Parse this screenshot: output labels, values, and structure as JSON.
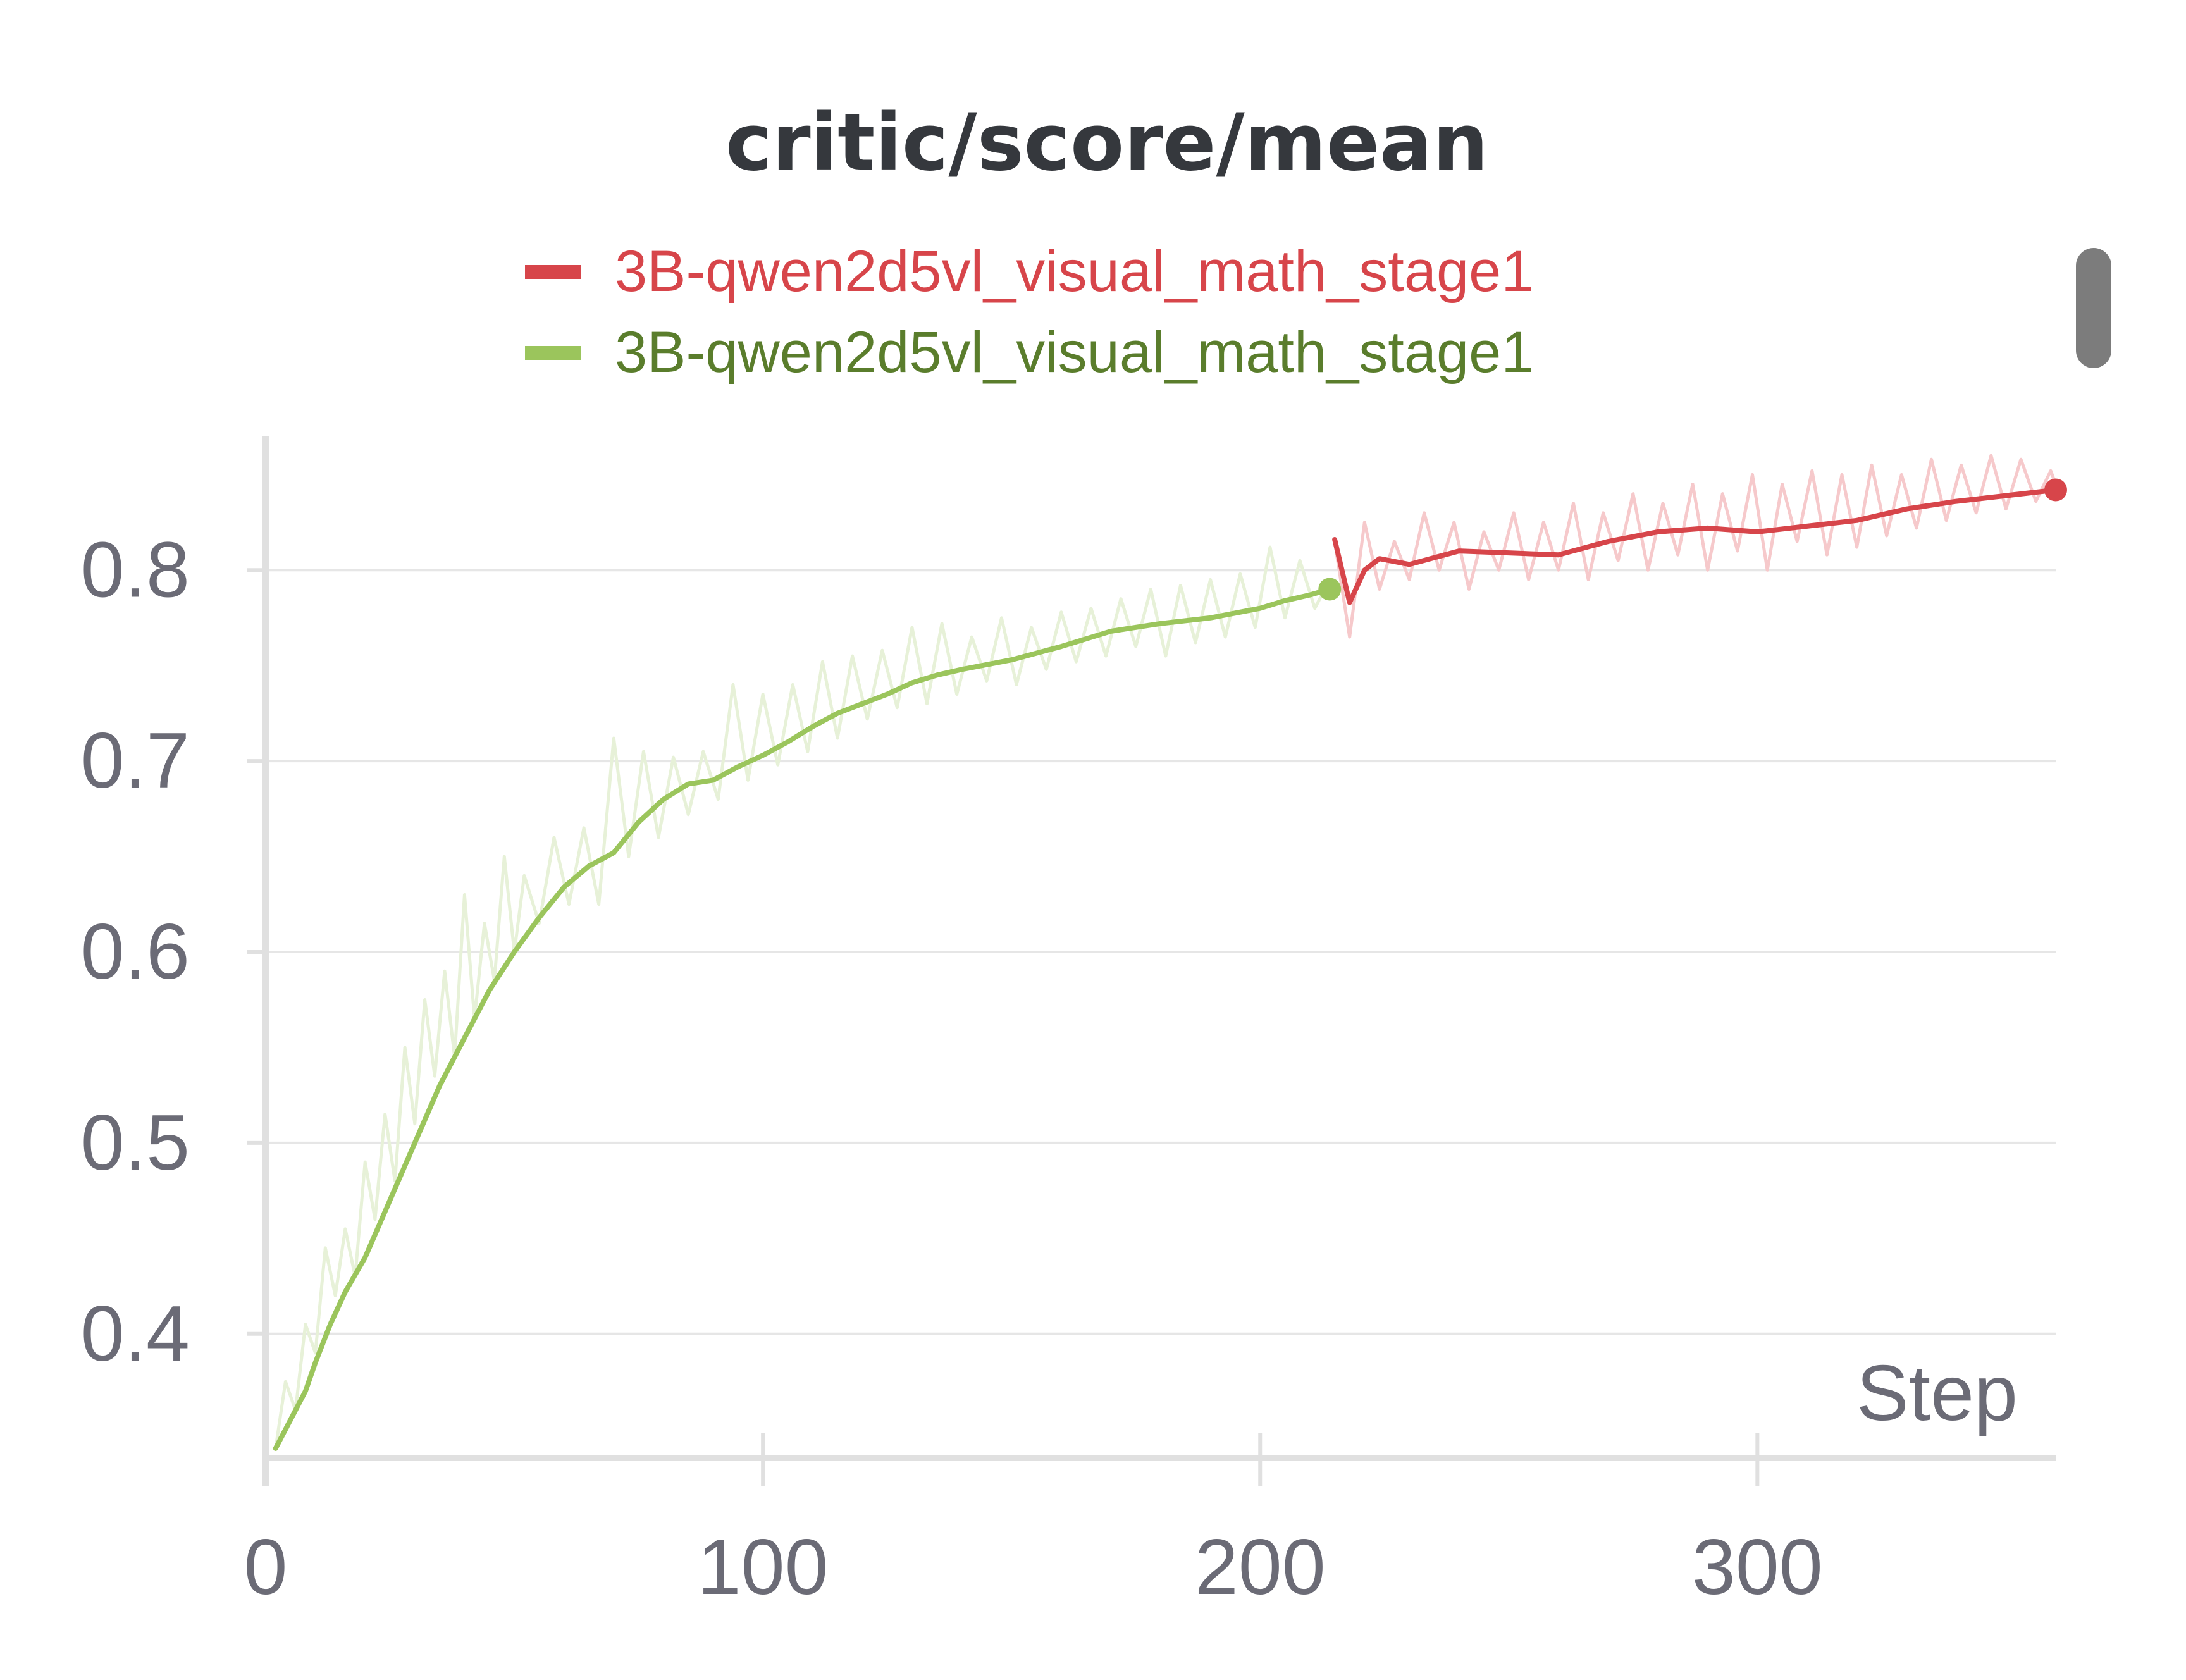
{
  "colors": {
    "background": "#ffffff",
    "title": "#35383d",
    "tick_text": "#6b6b76",
    "grid": "#e6e6e6",
    "axis": "#e0e0e0",
    "series_red": "#d7454a",
    "series_red_light": "#f6c9cb",
    "series_green": "#9bc55c",
    "series_green_light": "#e7f1d8",
    "legend_green_text": "#5a7d2c"
  },
  "chart_data": {
    "type": "line",
    "title": "critic/score/mean",
    "xlabel": "Step",
    "ylabel": "",
    "xlim": [
      0,
      360
    ],
    "ylim": [
      0.335,
      0.87
    ],
    "x_ticks": [
      0,
      100,
      200,
      300
    ],
    "x_tick_labels": [
      "0",
      "100",
      "200",
      "300"
    ],
    "y_ticks": [
      0.4,
      0.5,
      0.6,
      0.7,
      0.8
    ],
    "y_tick_labels": [
      "0.4",
      "0.5",
      "0.6",
      "0.7",
      "0.8"
    ],
    "grid": true,
    "legend_position": "top-center",
    "series": [
      {
        "name": "3B-qwen2d5vl_visual_math_stage1",
        "color": "#d7454a",
        "smoothed": {
          "x": [
            215,
            218,
            221,
            224,
            230,
            240,
            250,
            260,
            270,
            280,
            290,
            300,
            310,
            320,
            330,
            340,
            350,
            360
          ],
          "y": [
            0.816,
            0.783,
            0.8,
            0.806,
            0.803,
            0.81,
            0.809,
            0.808,
            0.815,
            0.82,
            0.822,
            0.82,
            0.823,
            0.826,
            0.832,
            0.836,
            0.839,
            0.842
          ]
        },
        "raw": {
          "x": [
            215,
            218,
            221,
            224,
            227,
            230,
            233,
            236,
            239,
            242,
            245,
            248,
            251,
            254,
            257,
            260,
            263,
            266,
            269,
            272,
            275,
            278,
            281,
            284,
            287,
            290,
            293,
            296,
            299,
            302,
            305,
            308,
            311,
            314,
            317,
            320,
            323,
            326,
            329,
            332,
            335,
            338,
            341,
            344,
            347,
            350,
            353,
            356,
            359,
            360
          ],
          "y": [
            0.815,
            0.765,
            0.825,
            0.79,
            0.815,
            0.795,
            0.83,
            0.8,
            0.825,
            0.79,
            0.82,
            0.8,
            0.83,
            0.795,
            0.825,
            0.8,
            0.835,
            0.795,
            0.83,
            0.805,
            0.84,
            0.8,
            0.835,
            0.808,
            0.845,
            0.8,
            0.84,
            0.81,
            0.85,
            0.8,
            0.845,
            0.815,
            0.852,
            0.808,
            0.85,
            0.812,
            0.855,
            0.818,
            0.85,
            0.822,
            0.858,
            0.826,
            0.855,
            0.83,
            0.86,
            0.832,
            0.858,
            0.836,
            0.852,
            0.845
          ]
        },
        "last_point": [
          360,
          0.842
        ]
      },
      {
        "name": "3B-qwen2d5vl_visual_math_stage1",
        "color": "#9bc55c",
        "smoothed": {
          "x": [
            2,
            5,
            8,
            10,
            13,
            16,
            20,
            25,
            30,
            35,
            40,
            45,
            50,
            55,
            60,
            65,
            70,
            75,
            80,
            85,
            90,
            95,
            100,
            105,
            110,
            115,
            120,
            125,
            130,
            135,
            140,
            150,
            160,
            170,
            180,
            190,
            200,
            205,
            210,
            214
          ],
          "y": [
            0.34,
            0.355,
            0.37,
            0.385,
            0.405,
            0.422,
            0.44,
            0.47,
            0.5,
            0.53,
            0.555,
            0.58,
            0.6,
            0.618,
            0.634,
            0.645,
            0.652,
            0.668,
            0.68,
            0.688,
            0.69,
            0.697,
            0.703,
            0.71,
            0.718,
            0.725,
            0.73,
            0.735,
            0.741,
            0.745,
            0.748,
            0.753,
            0.76,
            0.768,
            0.772,
            0.775,
            0.78,
            0.784,
            0.787,
            0.79
          ]
        },
        "raw": {
          "x": [
            2,
            4,
            6,
            8,
            10,
            12,
            14,
            16,
            18,
            20,
            22,
            24,
            26,
            28,
            30,
            32,
            34,
            36,
            38,
            40,
            42,
            44,
            46,
            48,
            50,
            52,
            55,
            58,
            61,
            64,
            67,
            70,
            73,
            76,
            79,
            82,
            85,
            88,
            91,
            94,
            97,
            100,
            103,
            106,
            109,
            112,
            115,
            118,
            121,
            124,
            127,
            130,
            133,
            136,
            139,
            142,
            145,
            148,
            151,
            154,
            157,
            160,
            163,
            166,
            169,
            172,
            175,
            178,
            181,
            184,
            187,
            190,
            193,
            196,
            199,
            202,
            205,
            208,
            211,
            214
          ],
          "y": [
            0.34,
            0.375,
            0.36,
            0.405,
            0.39,
            0.445,
            0.42,
            0.455,
            0.43,
            0.49,
            0.46,
            0.515,
            0.48,
            0.55,
            0.51,
            0.575,
            0.535,
            0.59,
            0.545,
            0.63,
            0.565,
            0.615,
            0.585,
            0.65,
            0.6,
            0.64,
            0.615,
            0.66,
            0.625,
            0.665,
            0.625,
            0.712,
            0.65,
            0.705,
            0.66,
            0.702,
            0.672,
            0.705,
            0.68,
            0.74,
            0.69,
            0.735,
            0.698,
            0.74,
            0.705,
            0.752,
            0.712,
            0.755,
            0.722,
            0.758,
            0.728,
            0.77,
            0.73,
            0.772,
            0.735,
            0.765,
            0.742,
            0.775,
            0.74,
            0.77,
            0.748,
            0.778,
            0.752,
            0.78,
            0.755,
            0.785,
            0.76,
            0.79,
            0.755,
            0.792,
            0.762,
            0.795,
            0.765,
            0.798,
            0.77,
            0.812,
            0.775,
            0.805,
            0.78,
            0.795
          ]
        },
        "last_point": [
          214,
          0.79
        ]
      }
    ]
  }
}
